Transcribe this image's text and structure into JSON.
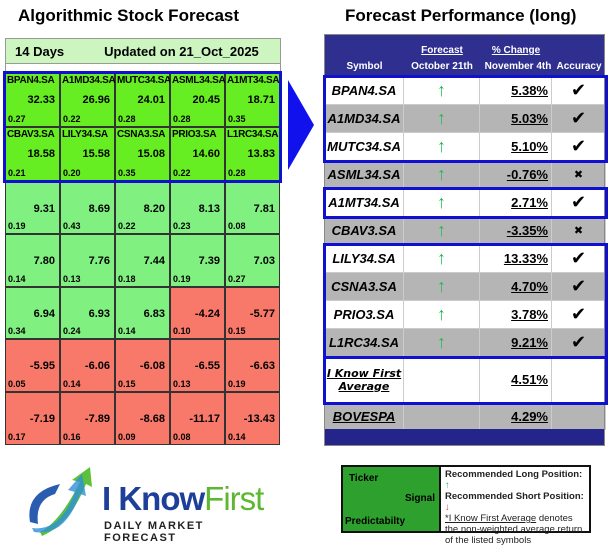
{
  "left": {
    "title": "Algorithmic Stock Forecast",
    "period": "14 Days",
    "updated": "Updated on 21_Oct_2025",
    "rows": [
      [
        {
          "ticker": "BPAN4.SA",
          "signal": "32.33",
          "pred": "0.27"
        },
        {
          "ticker": "A1MD34.SA",
          "signal": "26.96",
          "pred": "0.22"
        },
        {
          "ticker": "MUTC34.SA",
          "signal": "24.01",
          "pred": "0.28"
        },
        {
          "ticker": "ASML34.SA",
          "signal": "20.45",
          "pred": "0.28"
        },
        {
          "ticker": "A1MT34.SA",
          "signal": "18.71",
          "pred": "0.35"
        }
      ],
      [
        {
          "ticker": "CBAV3.SA",
          "signal": "18.58",
          "pred": "0.21"
        },
        {
          "ticker": "LILY34.SA",
          "signal": "15.58",
          "pred": "0.20"
        },
        {
          "ticker": "CSNA3.SA",
          "signal": "15.08",
          "pred": "0.35"
        },
        {
          "ticker": "PRIO3.SA",
          "signal": "14.60",
          "pred": "0.22"
        },
        {
          "ticker": "L1RC34.SA",
          "signal": "13.83",
          "pred": "0.28"
        }
      ],
      [
        {
          "signal": "9.31",
          "pred": "0.19"
        },
        {
          "signal": "8.69",
          "pred": "0.43"
        },
        {
          "signal": "8.20",
          "pred": "0.22"
        },
        {
          "signal": "8.13",
          "pred": "0.23"
        },
        {
          "signal": "7.81",
          "pred": "0.08"
        }
      ],
      [
        {
          "signal": "7.80",
          "pred": "0.14"
        },
        {
          "signal": "7.76",
          "pred": "0.13"
        },
        {
          "signal": "7.44",
          "pred": "0.18"
        },
        {
          "signal": "7.39",
          "pred": "0.19"
        },
        {
          "signal": "7.03",
          "pred": "0.27"
        }
      ],
      [
        {
          "signal": "6.94",
          "pred": "0.34"
        },
        {
          "signal": "6.93",
          "pred": "0.24"
        },
        {
          "signal": "6.83",
          "pred": "0.14"
        },
        {
          "signal": "-4.24",
          "pred": "0.10"
        },
        {
          "signal": "-5.77",
          "pred": "0.15"
        }
      ],
      [
        {
          "signal": "-5.95",
          "pred": "0.05"
        },
        {
          "signal": "-6.06",
          "pred": "0.14"
        },
        {
          "signal": "-6.08",
          "pred": "0.15"
        },
        {
          "signal": "-6.55",
          "pred": "0.13"
        },
        {
          "signal": "-6.63",
          "pred": "0.19"
        }
      ],
      [
        {
          "signal": "-7.19",
          "pred": "0.17"
        },
        {
          "signal": "-7.89",
          "pred": "0.16"
        },
        {
          "signal": "-8.68",
          "pred": "0.09"
        },
        {
          "signal": "-11.17",
          "pred": "0.08"
        },
        {
          "signal": "-13.43",
          "pred": "0.14"
        }
      ]
    ]
  },
  "right": {
    "title": "Forecast Performance (long)",
    "headers": {
      "symbol": "Symbol",
      "forecast_top": "Forecast",
      "forecast_bottom": "October 21th",
      "change_top": "% Change",
      "change_bottom": "November 4th",
      "accuracy": "Accuracy"
    },
    "rows": [
      {
        "symbol": "BPAN4.SA",
        "forecast": "↑",
        "change": "5.38%",
        "accuracy": "✔"
      },
      {
        "symbol": "A1MD34.SA",
        "forecast": "↑",
        "change": "5.03%",
        "accuracy": "✔"
      },
      {
        "symbol": "MUTC34.SA",
        "forecast": "↑",
        "change": "5.10%",
        "accuracy": "✔"
      },
      {
        "symbol": "ASML34.SA",
        "forecast": "↑",
        "change": "-0.76%",
        "accuracy": "✖"
      },
      {
        "symbol": "A1MT34.SA",
        "forecast": "↑",
        "change": "2.71%",
        "accuracy": "✔"
      },
      {
        "symbol": "CBAV3.SA",
        "forecast": "↑",
        "change": "-3.35%",
        "accuracy": "✖"
      },
      {
        "symbol": "LILY34.SA",
        "forecast": "↑",
        "change": "13.33%",
        "accuracy": "✔"
      },
      {
        "symbol": "CSNA3.SA",
        "forecast": "↑",
        "change": "4.70%",
        "accuracy": "✔"
      },
      {
        "symbol": "PRIO3.SA",
        "forecast": "↑",
        "change": "3.78%",
        "accuracy": "✔"
      },
      {
        "symbol": "L1RC34.SA",
        "forecast": "↑",
        "change": "9.21%",
        "accuracy": "✔"
      }
    ],
    "average": {
      "label_line1": "I Know First",
      "label_line2": "Average",
      "change": "4.51%"
    },
    "benchmark": {
      "label": "BOVESPA",
      "change": "4.29%"
    }
  },
  "legend": {
    "ticker": "Ticker",
    "signal": "Signal",
    "predictability": "Predictabilty",
    "long": "Recommended Long Position:",
    "short": "Recommended Short Position:",
    "long_arrow": "↑",
    "short_arrow": "↓",
    "note_link": "*I Know First Average",
    "note_rest": " denotes the non-weighted average return of the listed symbols"
  },
  "logo": {
    "brand_a": "I Know",
    "brand_b": "First",
    "tagline": "Daily Market Forecast"
  },
  "colors": {
    "strong_green": "#66ee22",
    "green": "#80f080",
    "red": "#f8796a",
    "navy": "#2f2f8f",
    "highlight": "#1010d0",
    "up_arrow": "#22bb55",
    "down_arrow": "#e03030"
  }
}
